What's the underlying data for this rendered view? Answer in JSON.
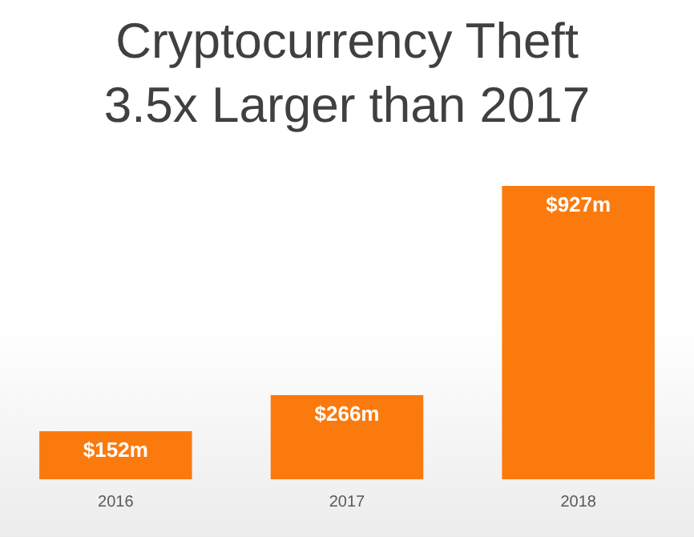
{
  "chart_data": {
    "type": "bar",
    "title": "Cryptocurrency Theft 3.5x Larger than 2017",
    "categories": [
      "2016",
      "2017",
      "2018"
    ],
    "values": [
      152,
      266,
      927
    ],
    "value_labels": [
      "$152m",
      "$266m",
      "$927m"
    ],
    "color": "#fb7a0e",
    "grid": false,
    "legend": false
  }
}
